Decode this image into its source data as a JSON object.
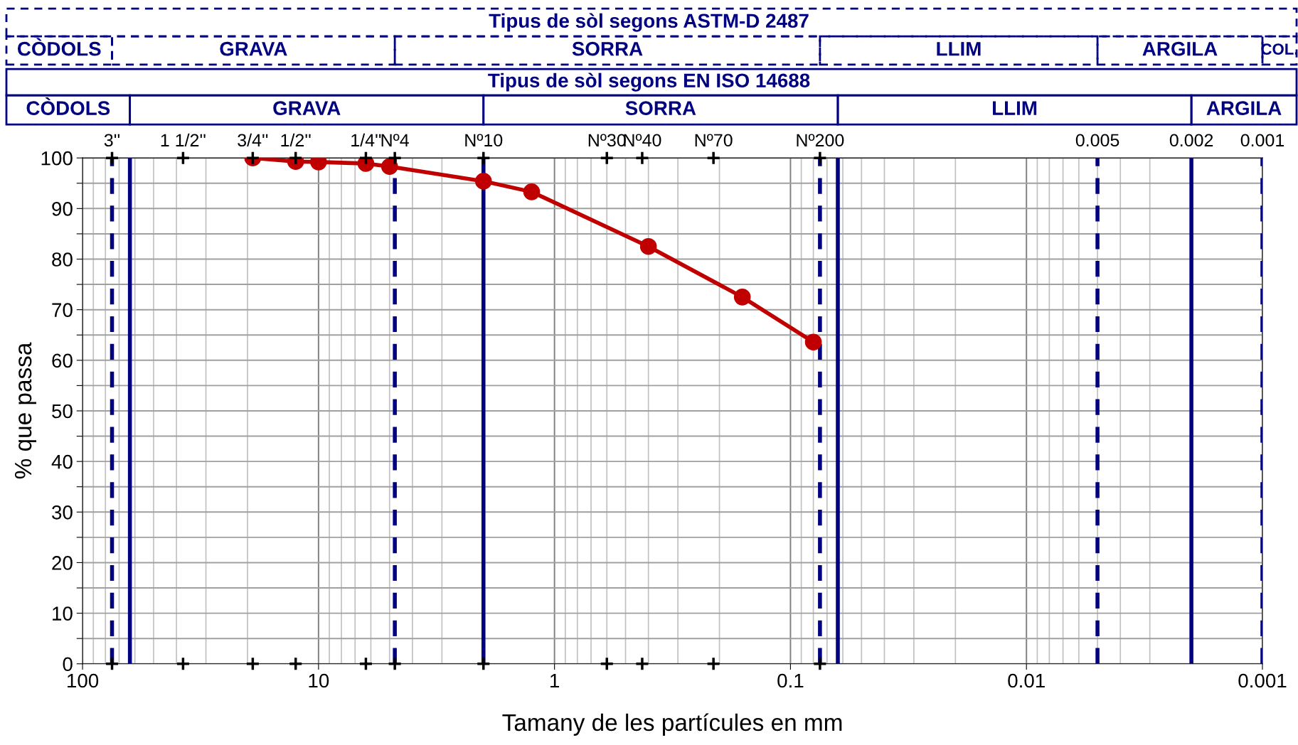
{
  "chart_data": [
    {
      "type": "other",
      "annotations": [
        "Tipus de sòl segons ASTM-D 2487",
        "CÒDOLS",
        "GRAVA",
        "SORRA",
        "LLIM",
        "ARGILA",
        "COL.",
        "Tipus de sòl segons EN ISO 14688",
        "CÒDOLS",
        "GRAVA",
        "SORRA",
        "LLIM",
        "ARGILA"
      ]
    },
    {
      "type": "line",
      "xlabel": "Tamany de les partícules en mm",
      "ylabel": "% que passa",
      "log": "x",
      "grid": true,
      "marker": "circle",
      "line_style": "solid",
      "xlim": [
        100,
        0.001
      ],
      "xticks": [
        100,
        10,
        1,
        0.1,
        0.01,
        0.001
      ],
      "ylim": [
        0,
        100
      ],
      "yticks": [
        0,
        {
          "value": 5,
          "label": null
        },
        10,
        {
          "value": 15,
          "label": null
        },
        20,
        {
          "value": 25,
          "label": null
        },
        30,
        {
          "value": 35,
          "label": null
        },
        40,
        {
          "value": 45,
          "label": null
        },
        50,
        {
          "value": 55,
          "label": null
        },
        60,
        {
          "value": 65,
          "label": null
        },
        70,
        {
          "value": 75,
          "label": null
        },
        80,
        {
          "value": 85,
          "label": null
        },
        90,
        {
          "value": 95,
          "label": null
        },
        100
      ],
      "series": [
        {
          "color": "#c00000",
          "x": [
            19,
            12.5,
            10,
            6.3,
            5,
            2,
            1.25,
            0.4,
            0.16,
            0.08
          ],
          "values": [
            100,
            99.3,
            99.2,
            98.9,
            98.3,
            95.4,
            93.3,
            82.5,
            72.5,
            63.6
          ]
        },
        {
          "type": "scatter",
          "marker": "cross",
          "color": "#000000",
          "x": [
            75,
            37.5,
            19,
            12.5,
            6.3,
            4.75,
            2,
            0.6,
            0.425,
            0.212,
            0.075,
            75,
            37.5,
            19,
            12.5,
            6.3,
            4.75,
            2,
            0.6,
            0.425,
            0.212,
            0.075
          ],
          "values": [
            100,
            100,
            100,
            100,
            100,
            100,
            100,
            100,
            100,
            100,
            100,
            0,
            0,
            0,
            0,
            0,
            0,
            0,
            0,
            0,
            0,
            0
          ]
        }
      ],
      "ref_lines": [
        {
          "axis": "x",
          "value": 75,
          "color": "#000080",
          "line_style": "dashed"
        },
        {
          "axis": "x",
          "value": 4.75,
          "color": "#000080",
          "line_style": "dashed"
        },
        {
          "axis": "x",
          "value": 0.075,
          "color": "#000080",
          "line_style": "dashed"
        },
        {
          "axis": "x",
          "value": 0.005,
          "color": "#000080",
          "line_style": "dashed"
        },
        {
          "axis": "x",
          "value": 0.001,
          "color": "#000080",
          "line_style": "dashed"
        },
        {
          "axis": "x",
          "value": 63,
          "color": "#000080",
          "line_style": "solid"
        },
        {
          "axis": "x",
          "value": 2,
          "color": "#000080",
          "line_style": "solid"
        },
        {
          "axis": "x",
          "value": 0.063,
          "color": "#000080",
          "line_style": "solid"
        },
        {
          "axis": "x",
          "value": 0.002,
          "color": "#000080",
          "line_style": "solid"
        }
      ],
      "annotations": [
        {
          "text": "3''",
          "x": 75,
          "y": 100
        },
        {
          "text": "1 1/2''",
          "x": 37.5,
          "y": 100
        },
        {
          "text": "3/4''",
          "x": 19,
          "y": 100
        },
        {
          "text": "1/2''",
          "x": 12.5,
          "y": 100
        },
        {
          "text": "1/4''",
          "x": 6.3,
          "y": 100
        },
        {
          "text": "Nº4",
          "x": 4.75,
          "y": 100
        },
        {
          "text": "Nº10",
          "x": 2,
          "y": 100
        },
        {
          "text": "Nº30",
          "x": 0.6,
          "y": 100
        },
        {
          "text": "Nº40",
          "x": 0.425,
          "y": 100
        },
        {
          "text": "Nº70",
          "x": 0.212,
          "y": 100
        },
        {
          "text": "Nº200",
          "x": 0.075,
          "y": 100
        },
        {
          "text": "0.005",
          "x": 0.005,
          "y": 100
        },
        {
          "text": "0.002",
          "x": 0.002,
          "y": 100
        },
        {
          "text": "0.001",
          "x": 0.001,
          "y": 100
        }
      ]
    }
  ]
}
